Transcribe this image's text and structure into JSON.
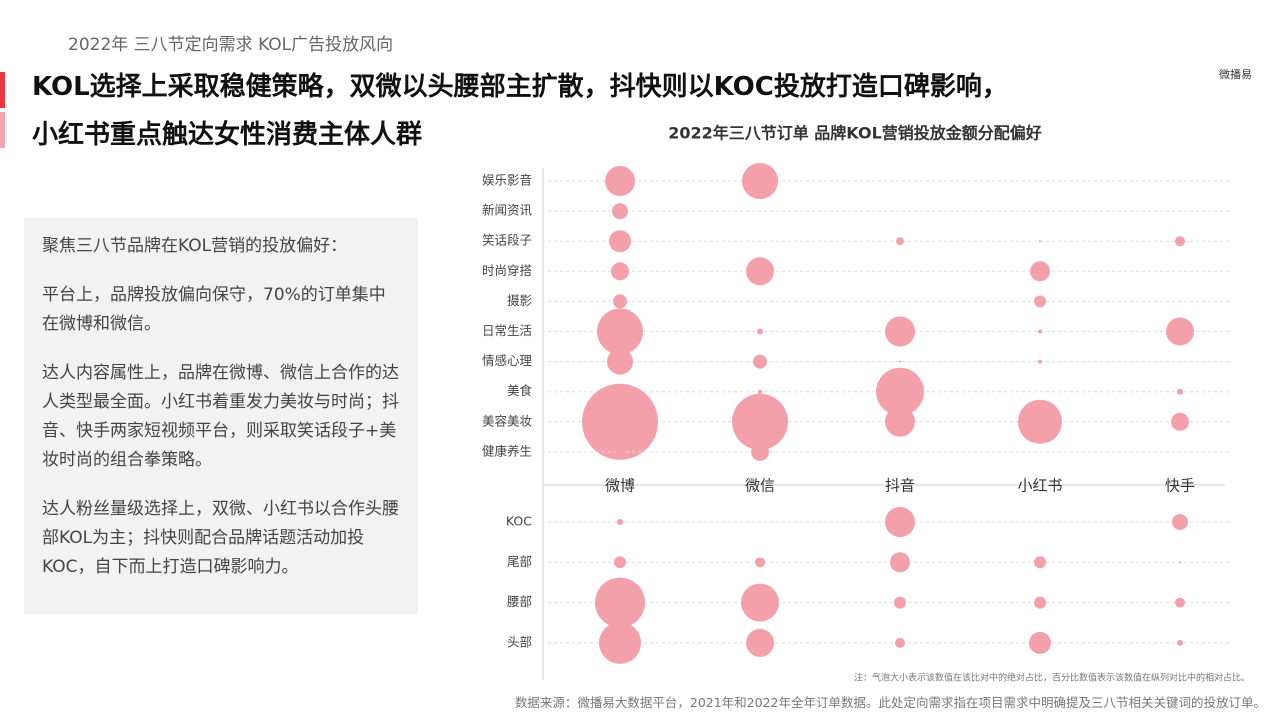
{
  "header": {
    "kicker": "2022年 三八节定向需求 KOL广告投放风向",
    "title_line1": "KOL选择上采取稳健策略，双微以头腰部主扩散，抖快则以KOC投放打造口碑影响，",
    "title_line2": "小红书重点触达女性消费主体人群",
    "logo": "微播易"
  },
  "sidebar": [
    "聚焦三八节品牌在KOL营销的投放偏好：",
    "平台上，品牌投放偏向保守，70%的订单集中在微博和微信。",
    "达人内容属性上，品牌在微博、微信上合作的达人类型最全面。小红书着重发力美妆与时尚；抖音、快手两家短视频平台，则采取笑话段子+美妆时尚的组合拳策略。",
    "达人粉丝量级选择上，双微、小红书以合作头腰部KOL为主；抖快则配合品牌话题活动加投KOC，自下而上打造口碑影响力。"
  ],
  "chart_data": {
    "type": "bubble",
    "title": "2022年三八节订单 品牌KOL营销投放金额分配偏好",
    "color": "#f4a0aa",
    "grid": true,
    "categories": [
      "微博",
      "微信",
      "抖音",
      "小红书",
      "快手"
    ],
    "rows": [
      "娱乐影音",
      "新闻资讯",
      "笑话段子",
      "时尚穿搭",
      "摄影",
      "日常生活",
      "情感心理",
      "美食",
      "美容美妆",
      "健康养生"
    ],
    "values": [
      [
        15,
        18,
        0,
        0,
        0
      ],
      [
        8,
        0,
        0,
        0,
        0
      ],
      [
        11,
        0,
        4,
        1,
        5
      ],
      [
        9,
        14,
        0,
        10,
        0
      ],
      [
        7,
        0,
        0,
        6,
        0
      ],
      [
        23,
        3,
        15,
        2,
        14
      ],
      [
        13,
        7,
        1,
        2,
        0
      ],
      [
        6,
        2,
        24,
        0,
        3
      ],
      [
        38,
        28,
        15,
        22,
        9
      ],
      [
        4,
        9,
        0,
        0,
        0
      ]
    ],
    "tier_rows": [
      "KOC",
      "尾部",
      "腰部",
      "头部"
    ],
    "tier_values": [
      [
        3,
        0,
        15,
        0,
        8
      ],
      [
        6,
        5,
        10,
        6,
        1
      ],
      [
        25,
        19,
        6,
        6,
        5
      ],
      [
        21,
        14,
        5,
        11,
        3
      ]
    ],
    "note": "注：气泡大小表示该数值在该比对中的绝对占比，百分比数值表示该数值在纵列对比中的相对占比。"
  },
  "footer": "数据来源：微播易大数据平台，2021年和2022年全年订单数据。此处定向需求指在项目需求中明确提及三八节相关关键词的投放订单。"
}
